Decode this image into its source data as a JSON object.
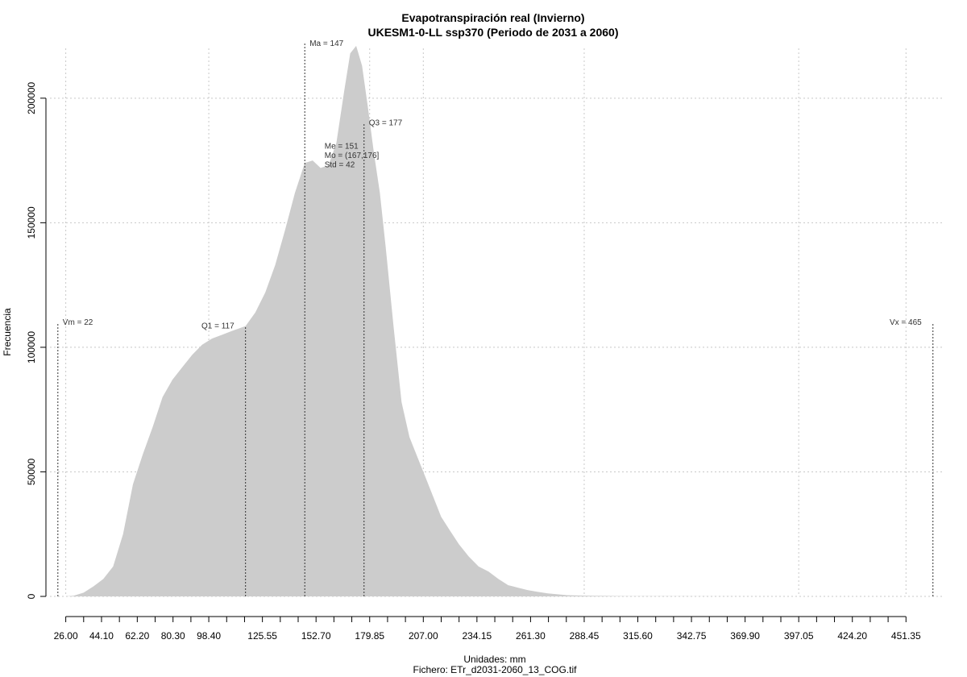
{
  "chart_data": {
    "type": "area",
    "title": "Evapotranspiración real (Invierno)",
    "subtitle": "UKESM1-0-LL ssp370 (Periodo de 2031 a 2060)",
    "xlabel": "Unidades: mm",
    "ylabel": "Frecuencia",
    "footer": "Fichero: ETr_d2031-2060_13_COG.tif",
    "fill_color": "#cccccc",
    "grid": true,
    "xlim": [
      18,
      470
    ],
    "ylim": [
      0,
      220000
    ],
    "x_ticks": [
      26.0,
      44.1,
      62.2,
      80.3,
      98.4,
      125.55,
      152.7,
      179.85,
      207.0,
      234.15,
      261.3,
      288.45,
      315.6,
      342.75,
      369.9,
      397.05,
      424.2,
      451.35
    ],
    "x_tick_labels": [
      "26.00",
      "44.10",
      "62.20",
      "80.30",
      "98.40",
      "125.55",
      "152.70",
      "179.85",
      "207.00",
      "234.15",
      "261.30",
      "288.45",
      "315.60",
      "342.75",
      "369.90",
      "397.05",
      "424.20",
      "451.35"
    ],
    "x_minor_step": 9.05,
    "y_ticks": [
      0,
      50000,
      100000,
      150000,
      200000
    ],
    "y_tick_labels": [
      "0",
      "50000",
      "100000",
      "150000",
      "200000"
    ],
    "x_grid": [
      26.0,
      98.4,
      179.85,
      207.0,
      288.45,
      397.05,
      451.35
    ],
    "x": [
      26,
      30,
      35,
      40,
      45,
      50,
      55,
      60,
      65,
      70,
      75,
      80,
      85,
      90,
      95,
      100,
      105,
      110,
      117,
      122,
      127,
      132,
      137,
      142,
      147,
      151,
      155,
      159,
      163,
      167,
      170,
      173,
      176,
      179,
      182,
      185,
      188,
      192,
      196,
      200,
      204,
      208,
      212,
      216,
      220,
      225,
      230,
      235,
      240,
      245,
      250,
      255,
      260,
      265,
      270,
      280,
      290,
      300,
      310,
      330,
      360,
      400,
      440,
      465
    ],
    "y": [
      0,
      300,
      1500,
      4000,
      7000,
      12000,
      25000,
      45000,
      57000,
      68000,
      80000,
      87000,
      92000,
      97000,
      101000,
      103500,
      105000,
      106500,
      108500,
      114000,
      122000,
      133000,
      147000,
      162000,
      174000,
      175000,
      172000,
      173000,
      182000,
      203000,
      218000,
      221000,
      213000,
      196000,
      178000,
      162000,
      140000,
      108000,
      78000,
      64000,
      56000,
      48000,
      40000,
      32000,
      27000,
      21000,
      16000,
      12000,
      10000,
      7000,
      4500,
      3500,
      2500,
      1800,
      1200,
      500,
      300,
      200,
      100,
      50,
      20,
      10,
      5,
      0
    ],
    "stat_lines": [
      {
        "label": "Vm = 22",
        "x": 22,
        "top": 110000,
        "label_side": "right"
      },
      {
        "label": "Q1 = 117",
        "x": 117,
        "top": 108500,
        "label_side": "left"
      },
      {
        "label": "Ma = 147",
        "x": 147,
        "top": 222000,
        "label_side": "right"
      },
      {
        "label": "Q3 = 177",
        "x": 177,
        "top": 190000,
        "label_side": "right"
      },
      {
        "label": "Vx = 465",
        "x": 465,
        "top": 110000,
        "label_side": "left"
      }
    ],
    "stats_block": {
      "lines": [
        "Me = 151",
        "Mo = (167,176]",
        "Std = 42"
      ],
      "x": 157,
      "y": 181000
    }
  }
}
